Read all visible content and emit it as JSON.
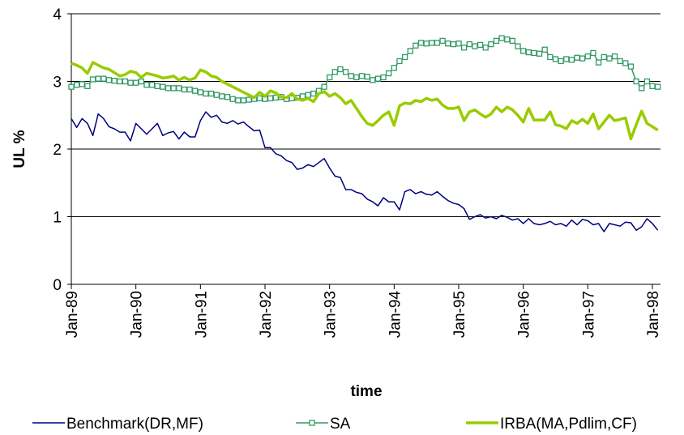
{
  "chart_data": {
    "type": "line",
    "x_label": "time",
    "y_label": "UL %",
    "categories": [
      "Jan-89",
      null,
      null,
      null,
      null,
      null,
      null,
      null,
      null,
      null,
      null,
      null,
      "Jan-90",
      null,
      null,
      null,
      null,
      null,
      null,
      null,
      null,
      null,
      null,
      null,
      "Jan-91",
      null,
      null,
      null,
      null,
      null,
      null,
      null,
      null,
      null,
      null,
      null,
      "Jan-92",
      null,
      null,
      null,
      null,
      null,
      null,
      null,
      null,
      null,
      null,
      null,
      "Jan-93",
      null,
      null,
      null,
      null,
      null,
      null,
      null,
      null,
      null,
      null,
      null,
      "Jan-94",
      null,
      null,
      null,
      null,
      null,
      null,
      null,
      null,
      null,
      null,
      null,
      "Jan-95",
      null,
      null,
      null,
      null,
      null,
      null,
      null,
      null,
      null,
      null,
      null,
      "Jan-96",
      null,
      null,
      null,
      null,
      null,
      null,
      null,
      null,
      null,
      null,
      null,
      "Jan-97",
      null,
      null,
      null,
      null,
      null,
      null,
      null,
      null,
      null,
      null,
      null,
      "Jan-98",
      null
    ],
    "series": [
      {
        "name": "Benchmark(DR,MF)",
        "color": "#000080",
        "marker": false,
        "values": [
          2.45,
          2.32,
          2.45,
          2.38,
          2.2,
          2.52,
          2.45,
          2.33,
          2.3,
          2.25,
          2.25,
          2.12,
          2.38,
          2.3,
          2.22,
          2.3,
          2.38,
          2.2,
          2.24,
          2.26,
          2.15,
          2.25,
          2.18,
          2.18,
          2.42,
          2.55,
          2.47,
          2.5,
          2.4,
          2.38,
          2.42,
          2.37,
          2.4,
          2.33,
          2.27,
          2.28,
          2.02,
          2.02,
          1.93,
          1.9,
          1.83,
          1.8,
          1.7,
          1.72,
          1.77,
          1.74,
          1.8,
          1.86,
          1.72,
          1.6,
          1.58,
          1.4,
          1.4,
          1.36,
          1.34,
          1.26,
          1.22,
          1.16,
          1.28,
          1.22,
          1.22,
          1.1,
          1.37,
          1.4,
          1.34,
          1.37,
          1.33,
          1.32,
          1.37,
          1.3,
          1.24,
          1.2,
          1.18,
          1.12,
          0.96,
          1.0,
          1.03,
          0.98,
          1.0,
          0.97,
          1.02,
          0.99,
          0.95,
          0.97,
          0.9,
          0.97,
          0.9,
          0.88,
          0.9,
          0.93,
          0.88,
          0.9,
          0.86,
          0.95,
          0.88,
          0.96,
          0.94,
          0.88,
          0.9,
          0.78,
          0.9,
          0.88,
          0.86,
          0.92,
          0.91,
          0.8,
          0.85,
          0.97,
          0.9,
          0.8
        ]
      },
      {
        "name": "SA",
        "color": "#339966",
        "marker": true,
        "values": [
          2.92,
          2.95,
          2.96,
          2.93,
          3.03,
          3.04,
          3.04,
          3.02,
          3.01,
          3.0,
          3.0,
          2.98,
          2.98,
          3.0,
          2.95,
          2.95,
          2.93,
          2.92,
          2.9,
          2.9,
          2.9,
          2.88,
          2.88,
          2.86,
          2.84,
          2.82,
          2.82,
          2.8,
          2.78,
          2.77,
          2.74,
          2.72,
          2.72,
          2.73,
          2.74,
          2.75,
          2.74,
          2.75,
          2.76,
          2.77,
          2.74,
          2.75,
          2.76,
          2.78,
          2.8,
          2.82,
          2.86,
          2.92,
          3.06,
          3.14,
          3.18,
          3.14,
          3.08,
          3.06,
          3.08,
          3.07,
          3.02,
          3.04,
          3.06,
          3.12,
          3.2,
          3.3,
          3.36,
          3.45,
          3.53,
          3.57,
          3.56,
          3.57,
          3.57,
          3.6,
          3.56,
          3.55,
          3.56,
          3.5,
          3.55,
          3.52,
          3.54,
          3.5,
          3.55,
          3.6,
          3.64,
          3.62,
          3.6,
          3.52,
          3.45,
          3.43,
          3.42,
          3.41,
          3.47,
          3.36,
          3.33,
          3.3,
          3.33,
          3.32,
          3.35,
          3.34,
          3.37,
          3.42,
          3.28,
          3.36,
          3.34,
          3.37,
          3.3,
          3.27,
          3.22,
          3.0,
          2.9,
          3.0,
          2.93,
          2.92
        ]
      },
      {
        "name": "IRBA(MA,Pdlim,CF)",
        "color": "#99cc00",
        "marker": false,
        "values": [
          3.27,
          3.24,
          3.2,
          3.12,
          3.28,
          3.24,
          3.2,
          3.18,
          3.13,
          3.08,
          3.1,
          3.15,
          3.13,
          3.06,
          3.12,
          3.1,
          3.08,
          3.05,
          3.06,
          3.08,
          3.02,
          3.06,
          3.02,
          3.05,
          3.17,
          3.14,
          3.08,
          3.06,
          3.0,
          2.96,
          2.92,
          2.88,
          2.84,
          2.8,
          2.76,
          2.84,
          2.78,
          2.86,
          2.83,
          2.77,
          2.76,
          2.82,
          2.74,
          2.72,
          2.75,
          2.7,
          2.82,
          2.85,
          2.78,
          2.82,
          2.76,
          2.67,
          2.72,
          2.6,
          2.48,
          2.38,
          2.35,
          2.42,
          2.5,
          2.55,
          2.35,
          2.64,
          2.68,
          2.67,
          2.72,
          2.7,
          2.75,
          2.72,
          2.74,
          2.65,
          2.6,
          2.6,
          2.62,
          2.42,
          2.55,
          2.58,
          2.52,
          2.47,
          2.52,
          2.62,
          2.55,
          2.62,
          2.58,
          2.5,
          2.4,
          2.6,
          2.43,
          2.43,
          2.43,
          2.55,
          2.36,
          2.34,
          2.3,
          2.42,
          2.38,
          2.44,
          2.38,
          2.52,
          2.3,
          2.4,
          2.5,
          2.42,
          2.44,
          2.46,
          2.15,
          2.36,
          2.56,
          2.38,
          2.33,
          2.28
        ]
      }
    ],
    "ylim": [
      0,
      4
    ],
    "yticks": [
      0,
      1,
      2,
      3,
      4
    ],
    "grid": true,
    "legend": "bottom"
  }
}
